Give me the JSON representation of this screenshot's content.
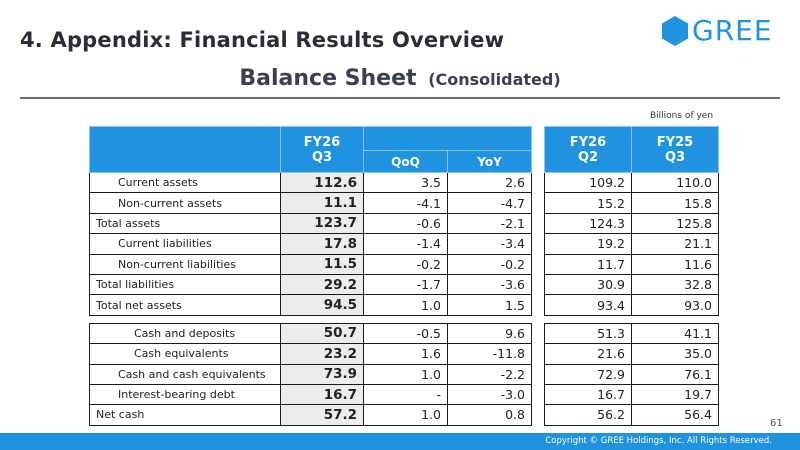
{
  "header": {
    "slide_title": "4. Appendix: Financial Results Overview",
    "logo_text": "GREE"
  },
  "sheet": {
    "title": "Balance Sheet",
    "subtitle": "(Consolidated)",
    "units": "Billions of yen"
  },
  "table": {
    "col_headers": {
      "current": "FY26\nQ3",
      "qoq": "QoQ",
      "yoy": "YoY",
      "prev_q": "FY26\nQ2",
      "prev_y": "FY25\nQ3"
    },
    "section1": [
      {
        "label": "Current assets",
        "current": "112.6",
        "qoq": "3.5",
        "yoy": "2.6",
        "prev_q": "109.2",
        "prev_y": "110.0"
      },
      {
        "label": "Non-current assets",
        "current": "11.1",
        "qoq": "-4.1",
        "yoy": "-4.7",
        "prev_q": "15.2",
        "prev_y": "15.8"
      },
      {
        "label": "Total assets",
        "current": "123.7",
        "qoq": "-0.6",
        "yoy": "-2.1",
        "prev_q": "124.3",
        "prev_y": "125.8"
      },
      {
        "label": "Current liabilities",
        "current": "17.8",
        "qoq": "-1.4",
        "yoy": "-3.4",
        "prev_q": "19.2",
        "prev_y": "21.1"
      },
      {
        "label": "Non-current liabilities",
        "current": "11.5",
        "qoq": "-0.2",
        "yoy": "-0.2",
        "prev_q": "11.7",
        "prev_y": "11.6"
      },
      {
        "label": "Total liabilities",
        "current": "29.2",
        "qoq": "-1.7",
        "yoy": "-3.6",
        "prev_q": "30.9",
        "prev_y": "32.8"
      },
      {
        "label": "Total net assets",
        "current": "94.5",
        "qoq": "1.0",
        "yoy": "1.5",
        "prev_q": "93.4",
        "prev_y": "93.0"
      }
    ],
    "section2": [
      {
        "label": "Cash and deposits",
        "current": "50.7",
        "qoq": "-0.5",
        "yoy": "9.6",
        "prev_q": "51.3",
        "prev_y": "41.1"
      },
      {
        "label": "Cash equivalents",
        "current": "23.2",
        "qoq": "1.6",
        "yoy": "-11.8",
        "prev_q": "21.6",
        "prev_y": "35.0"
      },
      {
        "label": "Cash and cash equivalents",
        "current": "73.9",
        "qoq": "1.0",
        "yoy": "-2.2",
        "prev_q": "72.9",
        "prev_y": "76.1"
      },
      {
        "label": "Interest-bearing debt",
        "current": "16.7",
        "qoq": "-",
        "yoy": "-3.0",
        "prev_q": "16.7",
        "prev_y": "19.7"
      },
      {
        "label": "Net cash",
        "current": "57.2",
        "qoq": "1.0",
        "yoy": "0.8",
        "prev_q": "56.2",
        "prev_y": "56.4"
      }
    ]
  },
  "footer": {
    "page_number": "61",
    "copyright": "Copyright © GREE Holdings, Inc. All Rights Reserved."
  },
  "colors": {
    "brand_blue": "#1f93e0",
    "highlight_gray": "#ececec"
  },
  "icons": {
    "logo": "hexagon-logo-icon"
  }
}
